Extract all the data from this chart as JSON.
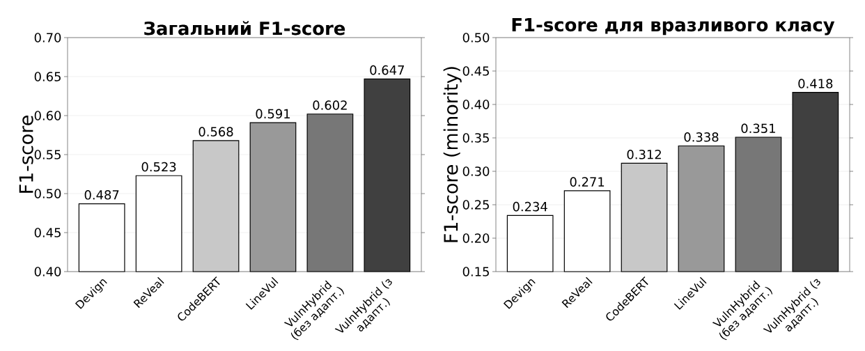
{
  "chart_data": [
    {
      "type": "bar",
      "title": "Загальний F1-score",
      "ylabel": "F1-score",
      "categories": [
        "Devign",
        "ReVeal",
        "CodeBERT",
        "LineVul",
        "VulnHybrid (без адапт.)",
        "VulnHybrid (з адапт.)"
      ],
      "values": [
        0.487,
        0.523,
        0.568,
        0.591,
        0.602,
        0.647
      ],
      "colors": [
        "#ffffff",
        "#ffffff",
        "#c8c8c8",
        "#999999",
        "#777777",
        "#404040"
      ],
      "ylim": [
        0.4,
        0.7
      ],
      "yticks": [
        {
          "value": 0.4,
          "label": "0.40"
        },
        {
          "value": 0.45,
          "label": "0.45"
        },
        {
          "value": 0.5,
          "label": "0.50"
        },
        {
          "value": 0.55,
          "label": "0.55"
        },
        {
          "value": 0.6,
          "label": "0.60"
        },
        {
          "value": 0.65,
          "label": "0.65"
        },
        {
          "value": 0.7,
          "label": "0.70"
        }
      ],
      "grid": "y",
      "data_labels": true
    },
    {
      "type": "bar",
      "title": "F1-score для вразливого класу",
      "ylabel": "F1-score (minority)",
      "categories": [
        "Devign",
        "ReVeal",
        "CodeBERT",
        "LineVul",
        "VulnHybrid (без адапт.)",
        "VulnHybrid (з адапт.)"
      ],
      "values": [
        0.234,
        0.271,
        0.312,
        0.338,
        0.351,
        0.418
      ],
      "colors": [
        "#ffffff",
        "#ffffff",
        "#c8c8c8",
        "#999999",
        "#777777",
        "#404040"
      ],
      "ylim": [
        0.15,
        0.5
      ],
      "yticks": [
        {
          "value": 0.15,
          "label": "0.15"
        },
        {
          "value": 0.2,
          "label": "0.20"
        },
        {
          "value": 0.25,
          "label": "0.25"
        },
        {
          "value": 0.3,
          "label": "0.30"
        },
        {
          "value": 0.35,
          "label": "0.35"
        },
        {
          "value": 0.4,
          "label": "0.40"
        },
        {
          "value": 0.45,
          "label": "0.45"
        },
        {
          "value": 0.5,
          "label": "0.50"
        }
      ],
      "grid": "y",
      "data_labels": true
    }
  ]
}
